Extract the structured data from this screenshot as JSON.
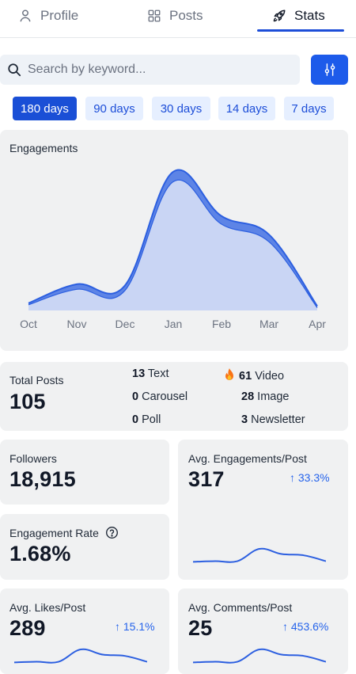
{
  "tabs": [
    {
      "label": "Profile",
      "icon": "person-icon",
      "active": false
    },
    {
      "label": "Posts",
      "icon": "grid-icon",
      "active": false
    },
    {
      "label": "Stats",
      "icon": "rocket-icon",
      "active": true
    }
  ],
  "search": {
    "placeholder": "Search by keyword..."
  },
  "ranges": [
    {
      "label": "180 days",
      "active": true
    },
    {
      "label": "90 days",
      "active": false
    },
    {
      "label": "30 days",
      "active": false
    },
    {
      "label": "14 days",
      "active": false
    },
    {
      "label": "7 days",
      "active": false
    }
  ],
  "colors": {
    "accent": "#1d4ed8",
    "card_bg": "#f0f1f2",
    "chart_fill": "#c9d5f4",
    "chart_line": "#2c5fe0"
  },
  "engagements": {
    "title": "Engagements",
    "chart_data": {
      "type": "area",
      "x": [
        "Oct",
        "Nov",
        "Dec",
        "Jan",
        "Feb",
        "Mar",
        "Apr"
      ],
      "values": [
        5,
        18,
        17,
        95,
        65,
        52,
        3
      ],
      "ylim": [
        0,
        100
      ],
      "grid": false
    }
  },
  "total_posts": {
    "label": "Total Posts",
    "value": "105",
    "types": [
      {
        "count": "13",
        "label": "Text"
      },
      {
        "count": "61",
        "label": "Video",
        "icon": "fire-icon"
      },
      {
        "count": "0",
        "label": "Carousel"
      },
      {
        "count": "28",
        "label": "Image"
      },
      {
        "count": "0",
        "label": "Poll"
      },
      {
        "count": "3",
        "label": "Newsletter"
      }
    ]
  },
  "followers": {
    "label": "Followers",
    "value": "18,915"
  },
  "engagement_rate": {
    "label": "Engagement Rate",
    "value": "1.68%",
    "icon": "help-icon"
  },
  "avg_engagements": {
    "label": "Avg. Engagements/Post",
    "value": "317",
    "delta": "↑ 33.3%"
  },
  "avg_likes": {
    "label": "Avg. Likes/Post",
    "value": "289",
    "delta": "↑ 15.1%"
  },
  "avg_comments": {
    "label": "Avg. Comments/Post",
    "value": "25",
    "delta": "↑ 453.6%"
  },
  "sparkline": [
    2,
    3,
    3,
    22,
    14,
    12,
    3
  ]
}
